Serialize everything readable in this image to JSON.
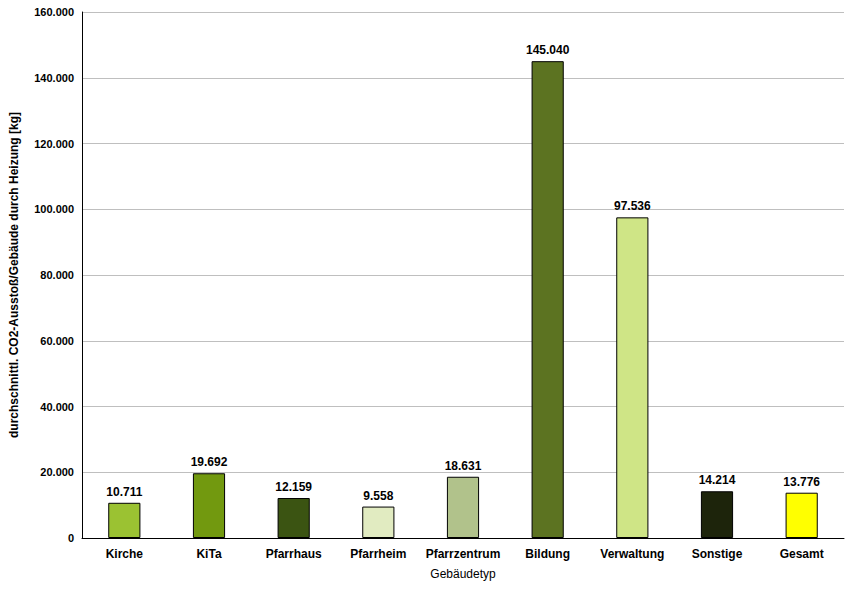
{
  "chart_data": {
    "type": "bar",
    "x_label": "Gebäudetyp",
    "y_label": "durchschnittl. CO2-Ausstoß/Gebäude durch Heizung [kg]",
    "categories": [
      "Kirche",
      "KiTa",
      "Pfarrhaus",
      "Pfarrheim",
      "Pfarrzentrum",
      "Bildung",
      "Verwaltung",
      "Sonstige",
      "Gesamt"
    ],
    "values": [
      10711,
      19692,
      12159,
      9558,
      18631,
      145040,
      97536,
      14214,
      13776
    ],
    "value_labels": [
      "10.711",
      "19.692",
      "12.159",
      "9.558",
      "18.631",
      "145.040",
      "97.536",
      "14.214",
      "13.776"
    ],
    "colors": [
      "#9bc232",
      "#72990f",
      "#3b5412",
      "#e1ebc1",
      "#b1c28b",
      "#5c7321",
      "#cfe586",
      "#1d240b",
      "#ffff00"
    ],
    "ylim": [
      0,
      160000
    ],
    "yticks": [
      0,
      {
        "value": 20000,
        "label": "20.000"
      },
      {
        "value": 40000,
        "label": "40.000"
      },
      {
        "value": 60000,
        "label": "60.000"
      },
      {
        "value": 80000,
        "label": "80.000"
      },
      {
        "value": 100000,
        "label": "100.000"
      },
      {
        "value": 120000,
        "label": "120.000"
      },
      {
        "value": 140000,
        "label": "140.000"
      },
      {
        "value": 160000,
        "label": "160.000"
      }
    ],
    "grid": true,
    "data_labels": true
  }
}
